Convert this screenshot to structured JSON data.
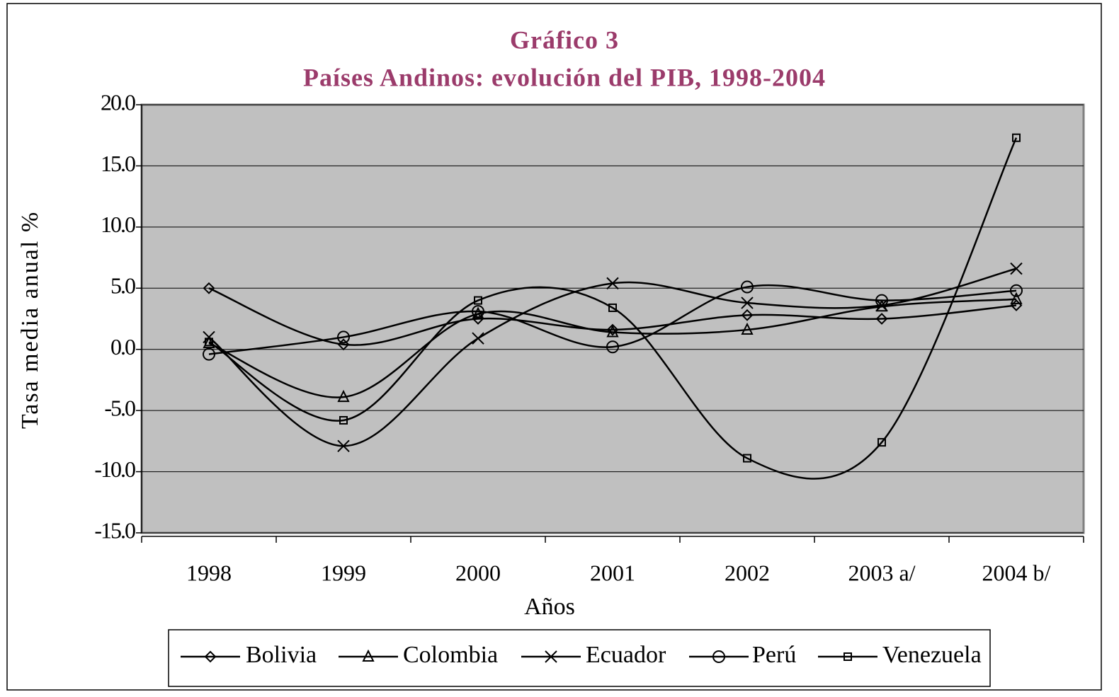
{
  "chart_data": {
    "type": "line",
    "title": "Gráfico 3",
    "subtitle": "Países Andinos: evolución del PIB, 1998-2004",
    "x_label": "Años",
    "y_label": "Tasa media anual %",
    "categories": [
      "1998",
      "1999",
      "2000",
      "2001",
      "2002",
      "2003 a/",
      "2004 b/"
    ],
    "series": [
      {
        "name": "Bolivia",
        "color": "#000000",
        "marker": "diamond",
        "values": [
          5.0,
          0.4,
          2.5,
          1.6,
          2.8,
          2.5,
          3.6
        ]
      },
      {
        "name": "Colombia",
        "color": "#000000",
        "marker": "triangle",
        "values": [
          0.5,
          -3.9,
          2.9,
          1.4,
          1.6,
          3.5,
          4.1
        ]
      },
      {
        "name": "Ecuador",
        "color": "#000000",
        "marker": "x",
        "values": [
          1.0,
          -7.9,
          0.9,
          5.4,
          3.8,
          3.6,
          6.6
        ]
      },
      {
        "name": "Perú",
        "color": "#000000",
        "marker": "circle",
        "values": [
          -0.4,
          1.0,
          3.1,
          0.2,
          5.1,
          4.0,
          4.8
        ]
      },
      {
        "name": "Venezuela",
        "color": "#000000",
        "marker": "square",
        "values": [
          0.6,
          -5.8,
          4.0,
          3.4,
          -8.9,
          -7.6,
          17.3
        ]
      }
    ],
    "ylim": [
      -15,
      20
    ],
    "yticks": [
      {
        "value": -15,
        "label": "-15.0"
      },
      {
        "value": -10,
        "label": "-10.0"
      },
      {
        "value": -5,
        "label": "-5.0"
      },
      {
        "value": 0,
        "label": "0.0"
      },
      {
        "value": 5,
        "label": "5.0"
      },
      {
        "value": 10,
        "label": "10.0"
      },
      {
        "value": 15,
        "label": "15.0"
      },
      {
        "value": 20,
        "label": "20.0"
      }
    ],
    "grid": true,
    "plot_background": "#c0c0c0",
    "legend": "bottom"
  }
}
